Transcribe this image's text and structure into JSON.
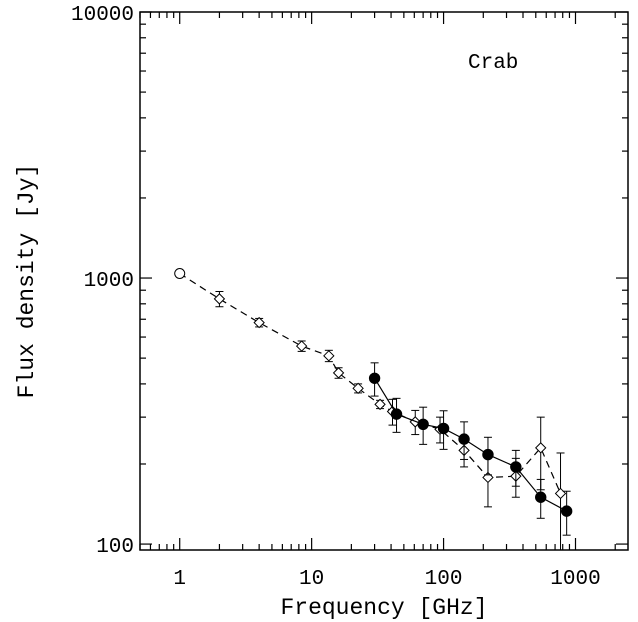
{
  "chart_data": {
    "type": "scatter",
    "title": "Crab",
    "xlabel": "Frequency [GHz]",
    "ylabel": "Flux density [Jy]",
    "xscale": "log",
    "yscale": "log",
    "xlim": [
      0.5,
      2500
    ],
    "ylim": [
      95,
      10000
    ],
    "grid": false,
    "x_ticks": [
      {
        "value": 1,
        "label": "1"
      },
      {
        "value": 10,
        "label": "10"
      },
      {
        "value": 100,
        "label": "100"
      },
      {
        "value": 1000,
        "label": "1000"
      }
    ],
    "y_ticks": [
      {
        "value": 100,
        "label": "100"
      },
      {
        "value": 1000,
        "label": "1000"
      },
      {
        "value": 10000,
        "label": "10000"
      }
    ],
    "series": [
      {
        "marker": "open-diamond",
        "line": "dashed",
        "points": [
          {
            "x": 1.0,
            "y": 1040,
            "marker": "open-circle"
          },
          {
            "x": 2.0,
            "y": 835,
            "err": 55
          },
          {
            "x": 4.0,
            "y": 680,
            "err": 25
          },
          {
            "x": 8.4,
            "y": 555,
            "err": 25
          },
          {
            "x": 13.5,
            "y": 510,
            "err": 25
          },
          {
            "x": 16,
            "y": 440,
            "err": 20
          },
          {
            "x": 22.5,
            "y": 385,
            "err": 15
          },
          {
            "x": 33,
            "y": 335,
            "err": 12
          },
          {
            "x": 41,
            "y": 315,
            "err": 35
          },
          {
            "x": 61,
            "y": 288,
            "err": 30
          },
          {
            "x": 94,
            "y": 270,
            "err": 30
          },
          {
            "x": 143,
            "y": 225,
            "err": 30
          },
          {
            "x": 217,
            "y": 178,
            "err": 40
          },
          {
            "x": 353,
            "y": 180,
            "err": 30
          },
          {
            "x": 545,
            "y": 230,
            "err": 70
          },
          {
            "x": 770,
            "y": 155,
            "err": 65
          }
        ]
      },
      {
        "marker": "filled-circle",
        "line": "solid",
        "points": [
          {
            "x": 30,
            "y": 420,
            "err": 60
          },
          {
            "x": 44,
            "y": 308,
            "err": 45
          },
          {
            "x": 70,
            "y": 282,
            "err": 45
          },
          {
            "x": 100,
            "y": 272,
            "err": 45
          },
          {
            "x": 143,
            "y": 248,
            "err": 40
          },
          {
            "x": 217,
            "y": 217,
            "err": 35
          },
          {
            "x": 353,
            "y": 195,
            "err": 30
          },
          {
            "x": 545,
            "y": 150,
            "err": 25
          },
          {
            "x": 857,
            "y": 133,
            "err": 25
          }
        ]
      }
    ]
  }
}
